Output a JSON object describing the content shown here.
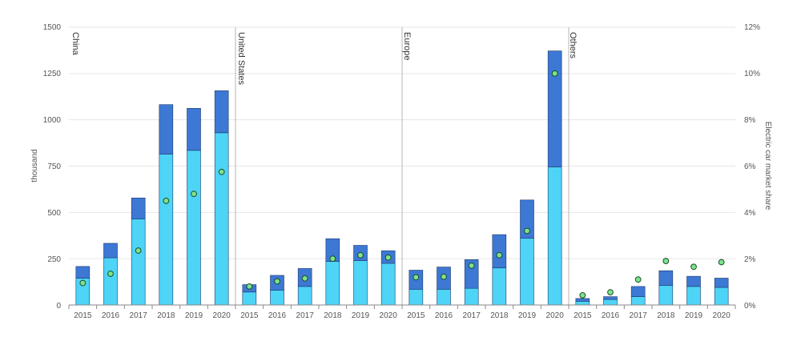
{
  "chart_data": {
    "type": "bar",
    "stacked": true,
    "groups": [
      "China",
      "United States",
      "Europe",
      "Others"
    ],
    "categories": [
      "2015",
      "2016",
      "2017",
      "2018",
      "2019",
      "2020"
    ],
    "series": [
      {
        "name": "",
        "color": "#4dd4f7",
        "values": {
          "China": [
            145,
            255,
            465,
            815,
            835,
            930
          ],
          "United States": [
            70,
            80,
            100,
            235,
            240,
            225
          ],
          "Europe": [
            85,
            85,
            90,
            200,
            360,
            745
          ],
          "Others": [
            20,
            30,
            45,
            105,
            100,
            95
          ]
        }
      },
      {
        "name": "",
        "color": "#3d78d4",
        "values": {
          "China": [
            63,
            78,
            113,
            267,
            227,
            227
          ],
          "United States": [
            40,
            80,
            97,
            123,
            82,
            68
          ],
          "Europe": [
            103,
            120,
            155,
            180,
            207,
            627
          ],
          "Others": [
            15,
            15,
            55,
            80,
            55,
            50
          ]
        }
      }
    ],
    "market_share": {
      "color": "#7de38a",
      "values": {
        "China": [
          0.95,
          1.35,
          2.35,
          4.5,
          4.8,
          5.75
        ],
        "United States": [
          0.8,
          1.02,
          1.15,
          2.0,
          2.15,
          2.05
        ],
        "Europe": [
          1.2,
          1.22,
          1.7,
          2.15,
          3.2,
          10.0
        ],
        "Others": [
          0.42,
          0.55,
          1.1,
          1.9,
          1.65,
          1.85
        ]
      }
    },
    "ylabel": "thousand",
    "y2label": "Electric car market share",
    "ylim": [
      0,
      1500
    ],
    "yticks": [
      "0",
      "250",
      "500",
      "750",
      "1000",
      "1250",
      "1500"
    ],
    "y2lim": [
      0,
      12
    ],
    "y2ticks": [
      "0%",
      "2%",
      "4%",
      "6%",
      "8%",
      "10%",
      "12%"
    ],
    "grid": true
  }
}
